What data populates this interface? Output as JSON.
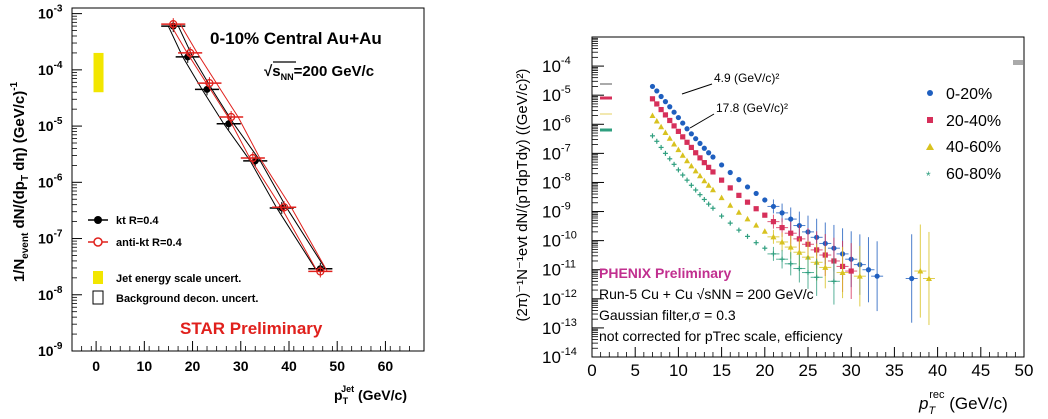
{
  "chart_data": [
    {
      "type": "scatter",
      "log_y": true,
      "xlim": [
        -5,
        68
      ],
      "ylim_log10": [
        -9,
        -2.9
      ],
      "x_ticks": [
        "0",
        "10",
        "20",
        "30",
        "40",
        "50",
        "60"
      ],
      "y_ticks": [
        "10",
        "10",
        "10",
        "10",
        "10",
        "10",
        "10"
      ],
      "y_tick_exponents": [
        "-9",
        "-8",
        "-7",
        "-6",
        "-5",
        "-4",
        "-3"
      ],
      "ylabel_parts": [
        "1/N",
        "event",
        " dN/(dp",
        "T",
        " dη) (GeV/c)",
        "-1"
      ],
      "xlabel_parts": [
        "p",
        "T",
        "Jet",
        " (GeV/c)"
      ],
      "annotations": {
        "title": "0-10% Central Au+Au",
        "energy_sqrt": "√",
        "energy_s": "s",
        "energy_sub": "NN",
        "energy_rest": "=200 GeV/c",
        "preliminary": "STAR Preliminary"
      },
      "legend": {
        "placement": "bottom-left",
        "entries": [
          "kt R=0.4",
          "anti-kt R=0.4",
          "Jet energy scale uncert.",
          "Background decon. uncert."
        ]
      },
      "colors": {
        "kt": "#000000",
        "antikt": "#e0201c",
        "jes": "#f2e600",
        "preliminary": "#e0201c"
      },
      "series": [
        {
          "name": "kt R=0.4",
          "x": [
            16,
            19,
            23,
            27.5,
            33,
            38.5,
            46.5
          ],
          "y": [
            0.0006,
            0.00017,
            4.5e-05,
            1.1e-05,
            2.4e-06,
            3.5e-07,
            2.9e-08
          ]
        },
        {
          "name": "anti-kt R=0.4",
          "x": [
            16,
            19.5,
            23.5,
            28,
            32.5,
            39,
            46.5
          ],
          "y": [
            0.00065,
            0.0002,
            5.8e-05,
            1.45e-05,
            2.7e-06,
            3.6e-07,
            2.6e-08
          ]
        }
      ],
      "jes_band": {
        "x": 0.5,
        "y_low": 4e-05,
        "y_high": 0.0002
      }
    },
    {
      "type": "scatter",
      "log_y": true,
      "xlim": [
        0,
        50
      ],
      "ylim_log10": [
        -14,
        -3
      ],
      "x_ticks": [
        "0",
        "5",
        "10",
        "15",
        "20",
        "25",
        "30",
        "35",
        "40",
        "45",
        "50"
      ],
      "y_ticks": [
        "10",
        "10",
        "10",
        "10",
        "10",
        "10",
        "10",
        "10",
        "10",
        "10",
        "10"
      ],
      "y_tick_exponents": [
        "-14",
        "-13",
        "-12",
        "-11",
        "-10",
        "-9",
        "-8",
        "-7",
        "-6",
        "-5",
        "-4"
      ],
      "ylabel_text": "(2π)⁻¹N⁻¹evt dN/(pTdpTdy) ((GeV/c)²)",
      "xlabel_parts": [
        "p",
        "T",
        "rec",
        " (GeV/c)"
      ],
      "annotations": {
        "a1": "4.9 (GeV/c)²",
        "a2": "17.8 (GeV/c)²",
        "preliminary": "PHENIX Preliminary",
        "line1": "Run-5 Cu + Cu √sNN = 200 GeV/c",
        "line2": "Gaussian filter,σ = 0.3",
        "line3": "not corrected for pTrec scale, efficiency"
      },
      "legend": {
        "placement": "top-right",
        "entries": [
          "0-20%",
          "20-40%",
          "40-60%",
          "60-80%"
        ]
      },
      "colors": {
        "s1": "#1f5fbf",
        "s2": "#d62f5a",
        "s3": "#d8c21f",
        "s4": "#2f9f7f",
        "preliminary": "#c12f8f"
      },
      "series": [
        {
          "name": "0-20%",
          "x": [
            7.0,
            7.5,
            8.0,
            8.5,
            9.0,
            9.5,
            10.0,
            10.5,
            11.0,
            11.5,
            12.0,
            12.5,
            13.0,
            13.5,
            14.0,
            15.0,
            16.0,
            17.0,
            18.0,
            19.0,
            20.0,
            21.0,
            22.0,
            23.0,
            24.0,
            25.0,
            26.0,
            27.0,
            28.0,
            29.0,
            30.0,
            31.0,
            32.0,
            33.0,
            37.0
          ],
          "y": [
            2e-05,
            1.4e-05,
            9e-06,
            6e-06,
            4e-06,
            2.6e-06,
            1.7e-06,
            1.1e-06,
            7e-07,
            4.7e-07,
            3.2e-07,
            2.2e-07,
            1.5e-07,
            1.05e-07,
            7.5e-08,
            4e-08,
            2.2e-08,
            1.25e-08,
            7e-09,
            4.2e-09,
            2.5e-09,
            1.5e-09,
            9e-10,
            5.5e-10,
            3.3e-10,
            2e-10,
            1.3e-10,
            8e-11,
            5.5e-11,
            3.5e-11,
            2.3e-11,
            1.5e-11,
            1e-11,
            6e-12,
            5e-12
          ]
        },
        {
          "name": "20-40%",
          "x": [
            7.0,
            7.5,
            8.0,
            8.5,
            9.0,
            9.5,
            10.0,
            10.5,
            11.0,
            11.5,
            12.0,
            12.5,
            13.0,
            13.5,
            14.0,
            15.0,
            16.0,
            17.0,
            18.0,
            19.0,
            20.0,
            21.0,
            22.0,
            23.0,
            24.0,
            25.0,
            26.0,
            27.0,
            28.0,
            29.0,
            30.0
          ],
          "y": [
            7.5e-06,
            5e-06,
            3.2e-06,
            2.1e-06,
            1.35e-06,
            8.8e-07,
            5.7e-07,
            3.7e-07,
            2.4e-07,
            1.6e-07,
            1.05e-07,
            7e-08,
            4.8e-08,
            3.3e-08,
            2.3e-08,
            1.2e-08,
            6.5e-09,
            3.6e-09,
            2.1e-09,
            1.25e-09,
            7.5e-10,
            4.5e-10,
            2.8e-10,
            1.8e-10,
            1.15e-10,
            7.5e-11,
            4.8e-11,
            3.2e-11,
            2e-11,
            1.3e-11,
            9e-12
          ]
        },
        {
          "name": "40-60%",
          "x": [
            7.0,
            7.5,
            8.0,
            8.5,
            9.0,
            9.5,
            10.0,
            10.5,
            11.0,
            11.5,
            12.0,
            12.5,
            13.0,
            13.5,
            14.0,
            15.0,
            16.0,
            17.0,
            18.0,
            19.0,
            20.0,
            21.0,
            22.0,
            23.0,
            24.0,
            25.0,
            26.0,
            27.0,
            29.0,
            31.0,
            38.0,
            39.0
          ],
          "y": [
            2e-06,
            1.3e-06,
            8.2e-07,
            5.2e-07,
            3.3e-07,
            2.1e-07,
            1.35e-07,
            8.6e-08,
            5.6e-08,
            3.7e-08,
            2.5e-08,
            1.7e-08,
            1.15e-08,
            8e-09,
            5.6e-09,
            3e-09,
            1.65e-09,
            9.5e-10,
            5.6e-10,
            3.4e-10,
            2.1e-10,
            1.35e-10,
            9e-11,
            6e-11,
            4e-11,
            2.7e-11,
            1.8e-11,
            1.2e-11,
            8e-12,
            6e-12,
            9e-12,
            5e-12
          ]
        },
        {
          "name": "60-80%",
          "x": [
            7.0,
            7.5,
            8.0,
            8.5,
            9.0,
            9.5,
            10.0,
            10.5,
            11.0,
            11.5,
            12.0,
            12.5,
            13.0,
            13.5,
            14.0,
            15.0,
            16.0,
            17.0,
            18.0,
            19.0,
            20.0,
            21.0,
            22.0,
            23.0,
            24.0,
            25.0,
            26.0,
            28.0
          ],
          "y": [
            4e-07,
            2.6e-07,
            1.6e-07,
            1e-07,
            6.5e-08,
            4.2e-08,
            2.7e-08,
            1.8e-08,
            1.2e-08,
            8e-09,
            5.5e-09,
            3.8e-09,
            2.6e-09,
            1.8e-09,
            1.3e-09,
            7e-10,
            4e-10,
            2.3e-10,
            1.4e-10,
            8.5e-11,
            5.5e-11,
            3.5e-11,
            2.3e-11,
            1.6e-11,
            1.1e-11,
            8e-12,
            5.5e-12,
            4e-12
          ]
        }
      ]
    }
  ]
}
